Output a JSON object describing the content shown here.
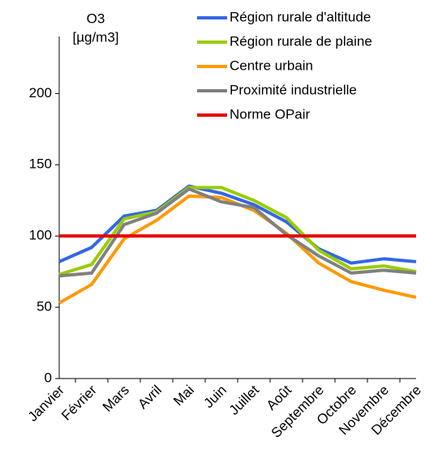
{
  "chart_data": {
    "type": "line",
    "y_label_lines": [
      "O3",
      "[µg/m3]"
    ],
    "categories": [
      "Janvier",
      "Février",
      "Mars",
      "Avril",
      "Mai",
      "Juin",
      "Juillet",
      "Août",
      "Septembre",
      "Octobre",
      "Novembre",
      "Décembre"
    ],
    "series": [
      {
        "name": "Région rurale d'altitude",
        "color": "#3366e6",
        "values": [
          82,
          92,
          114,
          118,
          135,
          130,
          122,
          110,
          91,
          81,
          84,
          82
        ]
      },
      {
        "name": "Région rurale de plaine",
        "color": "#99cc00",
        "values": [
          73,
          80,
          112,
          117,
          134,
          134,
          125,
          113,
          90,
          77,
          79,
          75
        ]
      },
      {
        "name": "Centre urbain",
        "color": "#ff9900",
        "values": [
          53,
          66,
          98,
          111,
          128,
          127,
          118,
          102,
          81,
          68,
          62,
          57
        ]
      },
      {
        "name": "Proximité industrielle",
        "color": "#808080",
        "values": [
          72,
          74,
          108,
          116,
          133,
          124,
          120,
          101,
          86,
          74,
          76,
          74
        ]
      },
      {
        "name": "Norme OPair",
        "color": "#e60000",
        "values": [
          100,
          100,
          100,
          100,
          100,
          100,
          100,
          100,
          100,
          100,
          100,
          100
        ]
      }
    ],
    "ylim": [
      0,
      240
    ],
    "yticks": [
      0,
      50,
      100,
      150,
      200
    ],
    "grid": false,
    "legend": "top-right"
  }
}
